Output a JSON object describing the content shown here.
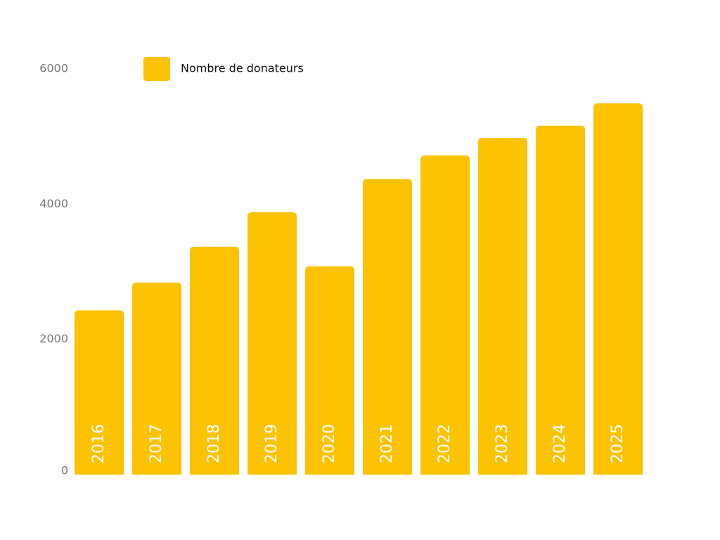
{
  "chart_data": {
    "type": "bar",
    "categories": [
      "2016",
      "2017",
      "2018",
      "2019",
      "2020",
      "2021",
      "2022",
      "2023",
      "2024",
      "2025"
    ],
    "series": [
      {
        "name": "Nombre de donateurs",
        "color": "#fcc204",
        "values": [
          2430,
          2840,
          3370,
          3880,
          3080,
          4370,
          4720,
          4980,
          5160,
          5490
        ]
      }
    ],
    "ylim": [
      0,
      6000
    ],
    "yticks": [
      0,
      2000,
      4000,
      6000
    ],
    "grid": false,
    "legend": "top-left"
  }
}
